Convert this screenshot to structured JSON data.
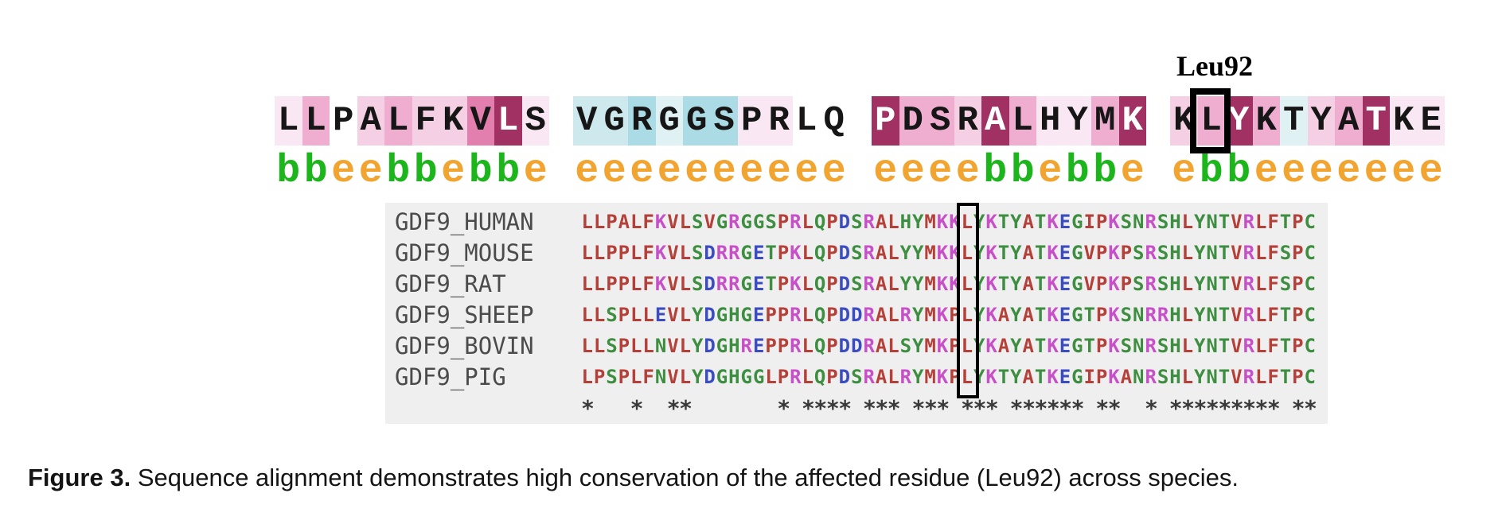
{
  "figure": {
    "residue_label": "Leu92",
    "caption_bold": "Figure 3.",
    "caption_text": " Sequence alignment demonstrates high conservation of the affected residue (Leu92) across species."
  },
  "colors": {
    "palette": {
      "vl": "#f9e8f3",
      "li": "#f5cfe3",
      "md": "#efadd0",
      "st": "#e27fae",
      "dk": "#a13063",
      "cl": "#e0f1f3",
      "cm": "#cde9ee",
      "cd": "#abdbe4",
      "wh": "transparent"
    },
    "letter_dark": "#161616",
    "letter_light": "#ffffff",
    "topology": {
      "b": "#1cb51c",
      "e": "#f2a431"
    },
    "residue_classes": {
      "KR": "#c74fc7",
      "DE": "#3b4cc0",
      "AVLIMFWP": "#b4403a",
      "default": "#3d8e40"
    },
    "panel_bg": "#f0efef",
    "species_name": "#4b4b4b",
    "conservation": "#3a3a3a",
    "highlight_box": "#000000"
  },
  "query_blocks": [
    {
      "seq": "LLPALFKVLS",
      "bg": [
        "vl",
        "md",
        "wh",
        "li",
        "md",
        "li",
        "li",
        "st",
        "dk",
        "vl"
      ],
      "topology": "bbeebbebbe"
    },
    {
      "seq": "VGRGGSPRLQ",
      "bg": [
        "cm",
        "cm",
        "cd",
        "cl",
        "cd",
        "cd",
        "vl",
        "vl",
        "wh",
        "wh"
      ],
      "topology": "eeeeeeeeee"
    },
    {
      "seq": "PDSRALHYMK",
      "bg": [
        "dk",
        "md",
        "md",
        "li",
        "dk",
        "md",
        "vl",
        "vl",
        "md",
        "dk"
      ],
      "topology": "eeeebbebbe"
    },
    {
      "seq": "KLYKTYATKE",
      "bg": [
        "li",
        "md",
        "dk",
        "md",
        "cl",
        "li",
        "md",
        "dk",
        "vl",
        "vl"
      ],
      "topology": "ebbeeeeeee",
      "boxed_index": 1
    }
  ],
  "alignment": {
    "rows": [
      {
        "name": "GDF9_HUMAN",
        "seq": "LLPALFKVLSVGRGGSPRLQPDSRALHYMKKLYKTYATKEGIPKSNRSHLYNTVRLFTPC"
      },
      {
        "name": "GDF9_MOUSE",
        "seq": "LLPPLFKVLSDRRGETPKLQPDSRALYYMKKLYKTYATKEGVPKPSRSHLYNTVRLFSPC"
      },
      {
        "name": "GDF9_RAT",
        "seq": "LLPPLFKVLSDRRGETPKLQPDSRALYYMKKLYKTYATKEGVPKPSRSHLYNTVRLFSPC"
      },
      {
        "name": "GDF9_SHEEP",
        "seq": "LLSPLLEVLYDGHGEPPRLQPDDRALRYMKPLYKAYATKEGTPKSNRRHLYNTVRLFTPC"
      },
      {
        "name": "GDF9_BOVIN",
        "seq": "LLSPLLNVLYDGHREPPRLQPDDRALSYMKPLYKAYATKEGTPKSNRSHLYNTVRLFTPC"
      },
      {
        "name": "GDF9_PIG",
        "seq": "LPSPLFNVLYDGHGGLPRLQPDSRALRYMKPLYKTYATKEGIPKANRSHLYNTVRLFTPC"
      }
    ],
    "conservation": "*   *  **       * **** *** *** *** ****** **  * ********* **",
    "boxed_column_index": 31
  }
}
